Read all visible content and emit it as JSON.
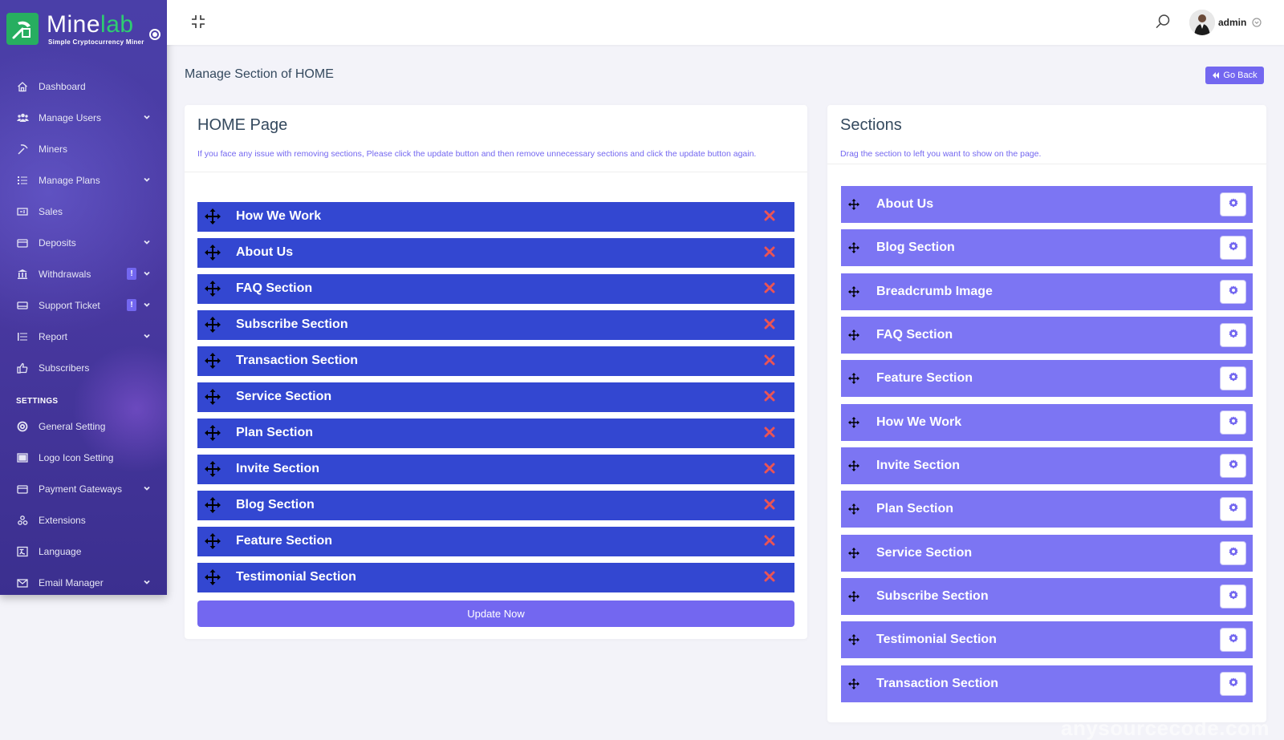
{
  "brand": {
    "name_part1": "Mine",
    "name_part2": "lab",
    "tagline": "Simple Cryptocurrency Miner",
    "accent": "#27ae60"
  },
  "sidebar": {
    "items": [
      {
        "label": "Dashboard",
        "icon": "home-icon"
      },
      {
        "label": "Manage Users",
        "icon": "users-icon",
        "has_submenu": true
      },
      {
        "label": "Miners",
        "icon": "pickaxe-icon"
      },
      {
        "label": "Manage Plans",
        "icon": "list-icon",
        "has_submenu": true
      },
      {
        "label": "Sales",
        "icon": "sales-icon"
      },
      {
        "label": "Deposits",
        "icon": "wallet-icon",
        "has_submenu": true
      },
      {
        "label": "Withdrawals",
        "icon": "bank-icon",
        "has_submenu": true,
        "badge": "!"
      },
      {
        "label": "Support Ticket",
        "icon": "ticket-icon",
        "has_submenu": true,
        "badge": "!"
      },
      {
        "label": "Report",
        "icon": "report-icon",
        "has_submenu": true
      },
      {
        "label": "Subscribers",
        "icon": "thumbs-up-icon"
      }
    ],
    "settings_heading": "SETTINGS",
    "settings_items": [
      {
        "label": "General Setting",
        "icon": "life-ring-icon"
      },
      {
        "label": "Logo Icon Setting",
        "icon": "image-icon"
      },
      {
        "label": "Payment Gateways",
        "icon": "credit-card-icon",
        "has_submenu": true
      },
      {
        "label": "Extensions",
        "icon": "cogs-icon"
      },
      {
        "label": "Language",
        "icon": "language-icon"
      },
      {
        "label": "Email Manager",
        "icon": "envelope-icon",
        "has_submenu": true
      }
    ]
  },
  "topbar": {
    "user_name": "admin"
  },
  "page": {
    "title": "Manage Section of HOME",
    "go_back_label": "Go Back"
  },
  "home_card": {
    "title": "HOME Page",
    "description": "If you face any issue with removing sections, Please click the update button and then remove unnecessary sections and click the update button again.",
    "sections": [
      "How We Work",
      "About Us",
      "FAQ Section",
      "Subscribe Section",
      "Transaction Section",
      "Service Section",
      "Plan Section",
      "Invite Section",
      "Blog Section",
      "Feature Section",
      "Testimonial Section"
    ],
    "update_label": "Update Now"
  },
  "sections_card": {
    "title": "Sections",
    "description": "Drag the section to left you want to show on the page.",
    "sections": [
      "About Us",
      "Blog Section",
      "Breadcrumb Image",
      "FAQ Section",
      "Feature Section",
      "How We Work",
      "Invite Section",
      "Plan Section",
      "Service Section",
      "Subscribe Section",
      "Testimonial Section",
      "Transaction Section"
    ]
  },
  "colors": {
    "primary": "#7367f0",
    "active_item": "#3347d1",
    "available_item": "#7c75f3",
    "remove": "#ea5455"
  },
  "watermark": "anysourcecode.com"
}
